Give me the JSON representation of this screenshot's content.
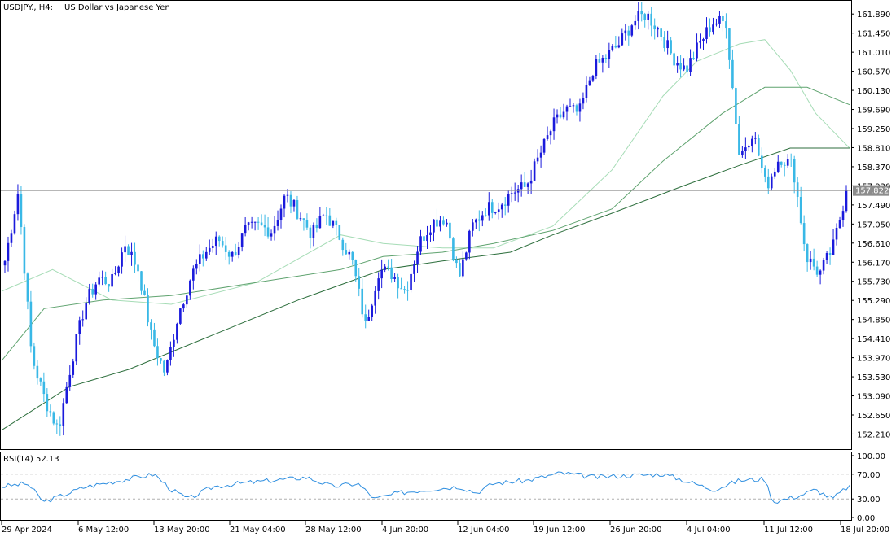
{
  "header": {
    "symbol": "USDJPY., H4:",
    "description": "US Dollar vs Japanese Yen"
  },
  "price_axis": {
    "ticks": [
      "161.890",
      "161.450",
      "161.010",
      "160.570",
      "160.130",
      "159.690",
      "159.250",
      "158.810",
      "158.370",
      "157.930",
      "157.490",
      "157.050",
      "156.610",
      "156.170",
      "155.730",
      "155.290",
      "154.850",
      "154.410",
      "153.970",
      "153.530",
      "153.090",
      "152.650",
      "152.210"
    ],
    "current_price": "157.822"
  },
  "rsi_panel": {
    "label": "RSI(14) 52.13",
    "ticks": [
      "100.00",
      "70.00",
      "30.00",
      "0.00"
    ]
  },
  "time_axis": {
    "labels": [
      "29 Apr 2024",
      "6 May 12:00",
      "13 May 20:00",
      "21 May 04:00",
      "28 May 12:00",
      "4 Jun 20:00",
      "12 Jun 04:00",
      "19 Jun 12:00",
      "26 Jun 20:00",
      "4 Jul 04:00",
      "11 Jul 12:00",
      "18 Jul 20:00"
    ]
  },
  "colors": {
    "bull": "#1a1adc",
    "bear": "#39b8e6",
    "ma_fast": "#a6dcb6",
    "ma_mid": "#5fa36f",
    "ma_slow": "#2c6e3c",
    "rsi_line": "#2f8fe0",
    "axis": "#000000",
    "price_tag_bg": "#8c8c8c"
  },
  "chart_data": {
    "type": "candlestick",
    "symbol": "USDJPY.",
    "timeframe": "H4",
    "ylim": [
      151.9,
      162.1
    ],
    "anchors": [
      [
        "29 Apr 2024",
        156.2
      ],
      [
        "1 May",
        157.8
      ],
      [
        "1 May",
        154.0
      ],
      [
        "2 May",
        153.0
      ],
      [
        "3 May",
        152.3
      ],
      [
        "6 May 12:00",
        153.9
      ],
      [
        "7 May",
        155.2
      ],
      [
        "9 May",
        155.8
      ],
      [
        "10 May",
        155.7
      ],
      [
        "13 May",
        156.6
      ],
      [
        "14 May",
        156.0
      ],
      [
        "15 May",
        154.4
      ],
      [
        "13 May 20:00",
        153.6
      ],
      [
        "16 May",
        155.0
      ],
      [
        "17 May",
        155.9
      ],
      [
        "20 May",
        156.4
      ],
      [
        "21 May 04:00",
        156.7
      ],
      [
        "22 May",
        156.3
      ],
      [
        "23 May",
        156.9
      ],
      [
        "24 May",
        157.0
      ],
      [
        "27 May",
        156.9
      ],
      [
        "28 May 12:00",
        157.7
      ],
      [
        "29 May",
        157.3
      ],
      [
        "30 May",
        156.8
      ],
      [
        "31 May",
        157.3
      ],
      [
        "3 Jun",
        156.8
      ],
      [
        "4 Jun",
        156.2
      ],
      [
        "4 Jun 20:00",
        154.7
      ],
      [
        "5 Jun",
        156.0
      ],
      [
        "6 Jun",
        155.9
      ],
      [
        "7 Jun",
        155.5
      ],
      [
        "10 Jun",
        156.6
      ],
      [
        "11 Jun",
        157.1
      ],
      [
        "12 Jun",
        157.2
      ],
      [
        "12 Jun 04:00",
        155.8
      ],
      [
        "13 Jun",
        157.0
      ],
      [
        "14 Jun",
        157.4
      ],
      [
        "17 Jun",
        157.5
      ],
      [
        "18 Jun",
        157.8
      ],
      [
        "19 Jun 12:00",
        157.9
      ],
      [
        "20 Jun",
        158.6
      ],
      [
        "21 Jun",
        159.3
      ],
      [
        "24 Jun",
        159.7
      ],
      [
        "25 Jun",
        159.6
      ],
      [
        "26 Jun",
        160.6
      ],
      [
        "26 Jun 20:00",
        160.9
      ],
      [
        "27 Jun",
        161.2
      ],
      [
        "28 Jun",
        161.7
      ],
      [
        "1 Jul",
        161.9
      ],
      [
        "2 Jul",
        161.5
      ],
      [
        "3 Jul",
        160.9
      ],
      [
        "4 Jul 04:00",
        160.6
      ],
      [
        "5 Jul",
        161.2
      ],
      [
        "8 Jul",
        161.7
      ],
      [
        "10 Jul",
        161.7
      ],
      [
        "11 Jul",
        158.6
      ],
      [
        "11 Jul 12:00",
        159.2
      ],
      [
        "12 Jul",
        157.9
      ],
      [
        "15 Jul",
        158.6
      ],
      [
        "16 Jul",
        158.4
      ],
      [
        "17 Jul",
        156.3
      ],
      [
        "17 Jul",
        155.9
      ],
      [
        "18 Jul",
        156.5
      ],
      [
        "18 Jul 20:00",
        157.82
      ]
    ],
    "moving_averages": [
      {
        "color": "#a6dcb6",
        "points": [
          [
            0,
            155.5
          ],
          [
            0.06,
            156.0
          ],
          [
            0.13,
            155.3
          ],
          [
            0.2,
            155.2
          ],
          [
            0.3,
            155.7
          ],
          [
            0.4,
            156.8
          ],
          [
            0.45,
            156.6
          ],
          [
            0.52,
            156.5
          ],
          [
            0.58,
            156.5
          ],
          [
            0.65,
            157.0
          ],
          [
            0.72,
            158.3
          ],
          [
            0.78,
            160.0
          ],
          [
            0.82,
            160.8
          ],
          [
            0.87,
            161.2
          ],
          [
            0.9,
            161.3
          ],
          [
            0.93,
            160.6
          ],
          [
            0.96,
            159.6
          ],
          [
            1.0,
            158.8
          ]
        ]
      },
      {
        "color": "#5fa36f",
        "points": [
          [
            0,
            153.9
          ],
          [
            0.05,
            155.1
          ],
          [
            0.12,
            155.3
          ],
          [
            0.2,
            155.4
          ],
          [
            0.3,
            155.7
          ],
          [
            0.4,
            156.0
          ],
          [
            0.45,
            156.3
          ],
          [
            0.52,
            156.4
          ],
          [
            0.58,
            156.6
          ],
          [
            0.65,
            156.9
          ],
          [
            0.72,
            157.4
          ],
          [
            0.78,
            158.5
          ],
          [
            0.85,
            159.6
          ],
          [
            0.9,
            160.2
          ],
          [
            0.95,
            160.2
          ],
          [
            1.0,
            159.8
          ]
        ]
      },
      {
        "color": "#2c6e3c",
        "points": [
          [
            0,
            152.3
          ],
          [
            0.08,
            153.3
          ],
          [
            0.15,
            153.7
          ],
          [
            0.25,
            154.5
          ],
          [
            0.35,
            155.3
          ],
          [
            0.45,
            156.0
          ],
          [
            0.52,
            156.2
          ],
          [
            0.6,
            156.4
          ],
          [
            0.65,
            156.8
          ],
          [
            0.72,
            157.3
          ],
          [
            0.8,
            157.9
          ],
          [
            0.87,
            158.4
          ],
          [
            0.93,
            158.8
          ],
          [
            1.0,
            158.8
          ]
        ]
      }
    ],
    "rsi": {
      "period": 14,
      "last": 52.13,
      "levels": [
        30,
        70
      ],
      "ylim": [
        0,
        100
      ],
      "anchors": [
        [
          0,
          50
        ],
        [
          0.03,
          55
        ],
        [
          0.05,
          25
        ],
        [
          0.07,
          35
        ],
        [
          0.1,
          50
        ],
        [
          0.14,
          60
        ],
        [
          0.18,
          70
        ],
        [
          0.2,
          45
        ],
        [
          0.22,
          30
        ],
        [
          0.25,
          50
        ],
        [
          0.28,
          55
        ],
        [
          0.32,
          60
        ],
        [
          0.36,
          65
        ],
        [
          0.39,
          50
        ],
        [
          0.42,
          55
        ],
        [
          0.44,
          30
        ],
        [
          0.47,
          40
        ],
        [
          0.5,
          45
        ],
        [
          0.54,
          50
        ],
        [
          0.56,
          40
        ],
        [
          0.58,
          55
        ],
        [
          0.62,
          60
        ],
        [
          0.66,
          72
        ],
        [
          0.7,
          65
        ],
        [
          0.74,
          68
        ],
        [
          0.78,
          70
        ],
        [
          0.8,
          62
        ],
        [
          0.84,
          45
        ],
        [
          0.87,
          60
        ],
        [
          0.9,
          62
        ],
        [
          0.91,
          25
        ],
        [
          0.94,
          35
        ],
        [
          0.96,
          45
        ],
        [
          0.98,
          30
        ],
        [
          1.0,
          52.13
        ]
      ]
    }
  }
}
